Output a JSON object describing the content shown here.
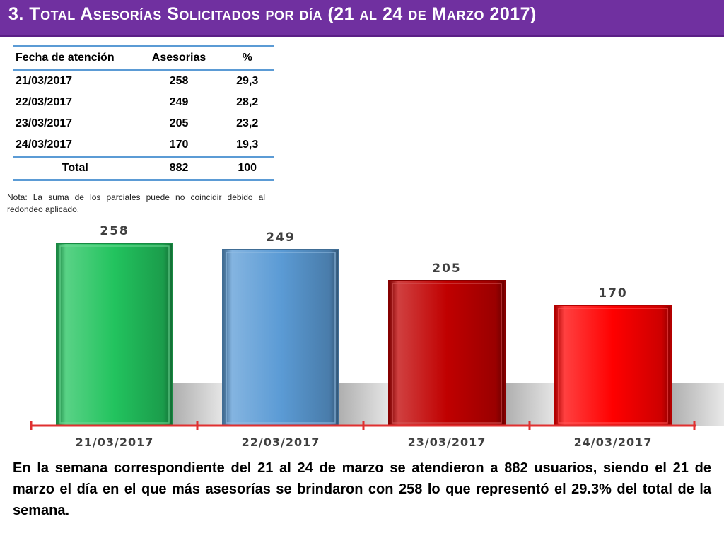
{
  "title": "3. Total Asesorías Solicitados por día (21 al 24 de Marzo 2017)",
  "table": {
    "headers": [
      "Fecha de atención",
      "Asesorias",
      "%"
    ],
    "rows": [
      [
        "21/03/2017",
        "258",
        "29,3"
      ],
      [
        "22/03/2017",
        "249",
        "28,2"
      ],
      [
        "23/03/2017",
        "205",
        "23,2"
      ],
      [
        "24/03/2017",
        "170",
        "19,3"
      ]
    ],
    "total": [
      "Total",
      "882",
      "100"
    ]
  },
  "note": "Nota: La suma de los parciales puede no coincidir debido al redondeo aplicado.",
  "chart_data": {
    "type": "bar",
    "categories": [
      "21/03/2017",
      "22/03/2017",
      "23/03/2017",
      "24/03/2017"
    ],
    "values": [
      258,
      249,
      205,
      170
    ],
    "colors": [
      "#22c35e",
      "#5b9bd5",
      "#c00000",
      "#ff0000"
    ],
    "axis_color": "#e03030",
    "label_color": "#404040",
    "title": "",
    "xlabel": "",
    "ylabel": "",
    "ylim": [
      0,
      258
    ],
    "grid": false,
    "legend": "none"
  },
  "summary": "En la semana correspondiente del 21 al 24 de marzo se atendieron a 882 usuarios, siendo el 21 de marzo el día en el que más asesorías se brindaron con 258 lo que representó el 29.3% del total de la semana."
}
